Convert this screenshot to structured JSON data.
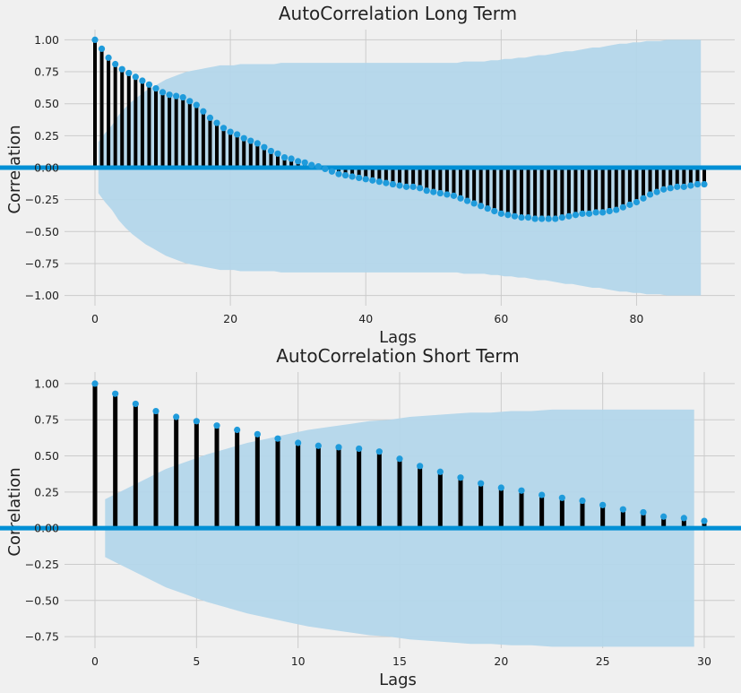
{
  "chart_data": [
    {
      "type": "stem",
      "title": "AutoCorrelation Long Term",
      "xlabel": "Lags",
      "ylabel": "Correlation",
      "xlim": [
        -4.5,
        94.5
      ],
      "ylim": [
        -1.08,
        1.08
      ],
      "xticks": [
        0,
        20,
        40,
        60,
        80
      ],
      "yticks": [
        "1.00",
        "0.75",
        "0.50",
        "0.25",
        "0.00",
        "−0.25",
        "−0.50",
        "−0.75",
        "−1.00"
      ],
      "grid": true,
      "lags": [
        0,
        1,
        2,
        3,
        4,
        5,
        6,
        7,
        8,
        9,
        10,
        11,
        12,
        13,
        14,
        15,
        16,
        17,
        18,
        19,
        20,
        21,
        22,
        23,
        24,
        25,
        26,
        27,
        28,
        29,
        30,
        31,
        32,
        33,
        34,
        35,
        36,
        37,
        38,
        39,
        40,
        41,
        42,
        43,
        44,
        45,
        46,
        47,
        48,
        49,
        50,
        51,
        52,
        53,
        54,
        55,
        56,
        57,
        58,
        59,
        60,
        61,
        62,
        63,
        64,
        65,
        66,
        67,
        68,
        69,
        70,
        71,
        72,
        73,
        74,
        75,
        76,
        77,
        78,
        79,
        80,
        81,
        82,
        83,
        84,
        85,
        86,
        87,
        88,
        89,
        90
      ],
      "values": [
        1.0,
        0.93,
        0.86,
        0.81,
        0.77,
        0.74,
        0.71,
        0.68,
        0.65,
        0.62,
        0.59,
        0.57,
        0.56,
        0.55,
        0.52,
        0.49,
        0.44,
        0.39,
        0.35,
        0.31,
        0.28,
        0.26,
        0.23,
        0.21,
        0.19,
        0.16,
        0.13,
        0.11,
        0.08,
        0.07,
        0.05,
        0.04,
        0.02,
        0.01,
        -0.01,
        -0.03,
        -0.05,
        -0.06,
        -0.07,
        -0.08,
        -0.09,
        -0.1,
        -0.11,
        -0.12,
        -0.13,
        -0.14,
        -0.15,
        -0.15,
        -0.16,
        -0.18,
        -0.19,
        -0.2,
        -0.21,
        -0.22,
        -0.24,
        -0.26,
        -0.28,
        -0.3,
        -0.32,
        -0.34,
        -0.36,
        -0.37,
        -0.38,
        -0.39,
        -0.39,
        -0.4,
        -0.4,
        -0.4,
        -0.4,
        -0.39,
        -0.38,
        -0.37,
        -0.36,
        -0.36,
        -0.35,
        -0.35,
        -0.34,
        -0.33,
        -0.31,
        -0.29,
        -0.27,
        -0.24,
        -0.21,
        -0.19,
        -0.17,
        -0.16,
        -0.15,
        -0.15,
        -0.14,
        -0.13,
        -0.13
      ],
      "confidence_upper": [
        0.2,
        0.27,
        0.33,
        0.41,
        0.47,
        0.52,
        0.56,
        0.6,
        0.63,
        0.66,
        0.69,
        0.71,
        0.73,
        0.75,
        0.76,
        0.77,
        0.78,
        0.79,
        0.8,
        0.8,
        0.8,
        0.81,
        0.81,
        0.81,
        0.81,
        0.81,
        0.81,
        0.82,
        0.82,
        0.82,
        0.82,
        0.82,
        0.82,
        0.82,
        0.82,
        0.82,
        0.82,
        0.82,
        0.82,
        0.82,
        0.82,
        0.82,
        0.82,
        0.82,
        0.82,
        0.82,
        0.82,
        0.82,
        0.82,
        0.82,
        0.82,
        0.82,
        0.82,
        0.82,
        0.83,
        0.83,
        0.83,
        0.83,
        0.84,
        0.84,
        0.85,
        0.85,
        0.86,
        0.86,
        0.87,
        0.88,
        0.88,
        0.89,
        0.9,
        0.91,
        0.91,
        0.92,
        0.93,
        0.94,
        0.94,
        0.95,
        0.96,
        0.97,
        0.97,
        0.98,
        0.98,
        0.99,
        0.99,
        0.99,
        1.0,
        1.0,
        1.0,
        1.0,
        1.0,
        1.0
      ]
    },
    {
      "type": "stem",
      "title": "AutoCorrelation Short Term",
      "xlabel": "Lags",
      "ylabel": "Correlation",
      "xlim": [
        -1.5,
        31.5
      ],
      "ylim": [
        -0.83,
        1.08
      ],
      "xticks": [
        0,
        5,
        10,
        15,
        20,
        25,
        30
      ],
      "yticks": [
        "1.00",
        "0.75",
        "0.50",
        "0.25",
        "0.00",
        "−0.25",
        "−0.50",
        "−0.75"
      ],
      "grid": true,
      "lags": [
        0,
        1,
        2,
        3,
        4,
        5,
        6,
        7,
        8,
        9,
        10,
        11,
        12,
        13,
        14,
        15,
        16,
        17,
        18,
        19,
        20,
        21,
        22,
        23,
        24,
        25,
        26,
        27,
        28,
        29,
        30
      ],
      "values": [
        1.0,
        0.93,
        0.86,
        0.81,
        0.77,
        0.74,
        0.71,
        0.68,
        0.65,
        0.62,
        0.59,
        0.57,
        0.56,
        0.55,
        0.53,
        0.48,
        0.43,
        0.39,
        0.35,
        0.31,
        0.28,
        0.26,
        0.23,
        0.21,
        0.19,
        0.16,
        0.13,
        0.11,
        0.08,
        0.07,
        0.05
      ],
      "confidence_upper": [
        0.2,
        0.27,
        0.34,
        0.41,
        0.46,
        0.51,
        0.55,
        0.59,
        0.62,
        0.65,
        0.68,
        0.7,
        0.72,
        0.74,
        0.75,
        0.77,
        0.78,
        0.79,
        0.8,
        0.8,
        0.81,
        0.81,
        0.82,
        0.82,
        0.82,
        0.82,
        0.82,
        0.82,
        0.82,
        0.82
      ]
    }
  ],
  "colors": {
    "background": "#f0f0f0",
    "grid": "#cbcbcb",
    "stem": "#000000",
    "marker": "#1f9bdb",
    "zero_line": "#008fd5",
    "confidence_band": "#b3d6ea"
  }
}
